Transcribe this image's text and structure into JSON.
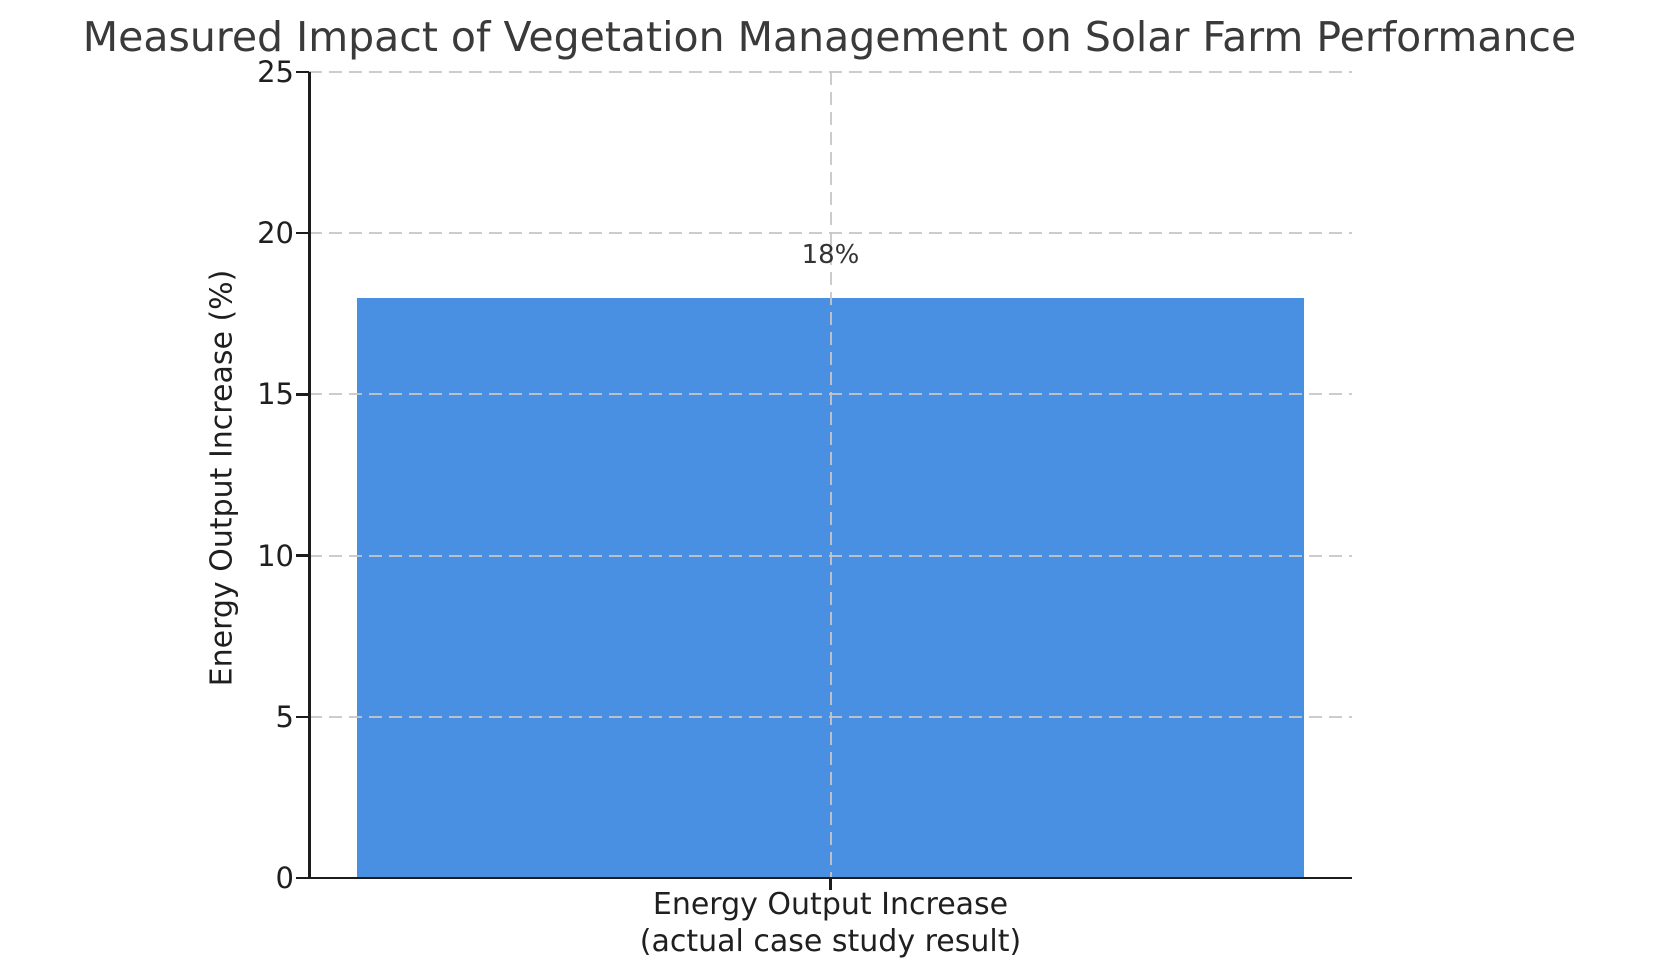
{
  "chart_data": {
    "type": "bar",
    "title": "Measured Impact of Vegetation Management on Solar Farm Performance",
    "categories": [
      "Energy Output Increase\n(actual case study result)"
    ],
    "values": [
      18
    ],
    "bar_labels": [
      "18%"
    ],
    "xlabel": "",
    "ylabel": "Energy Output Increase (%)",
    "ylim": [
      0,
      25
    ],
    "yticks": [
      0,
      5,
      10,
      15,
      20,
      25
    ],
    "xtick_line1": "Energy Output Increase",
    "xtick_line2": "(actual case study result)",
    "grid": "dashed gridlines on both axes, drawn over bar",
    "legend_position": "none",
    "bar_color": "#4a90e2"
  },
  "colors": {
    "bar": "#4a90e2",
    "grid": "#c6c6c6",
    "spine": "#1c1c1c",
    "text": "#1f1f1f",
    "title": "#3a3a3a",
    "background": "#ffffff"
  }
}
